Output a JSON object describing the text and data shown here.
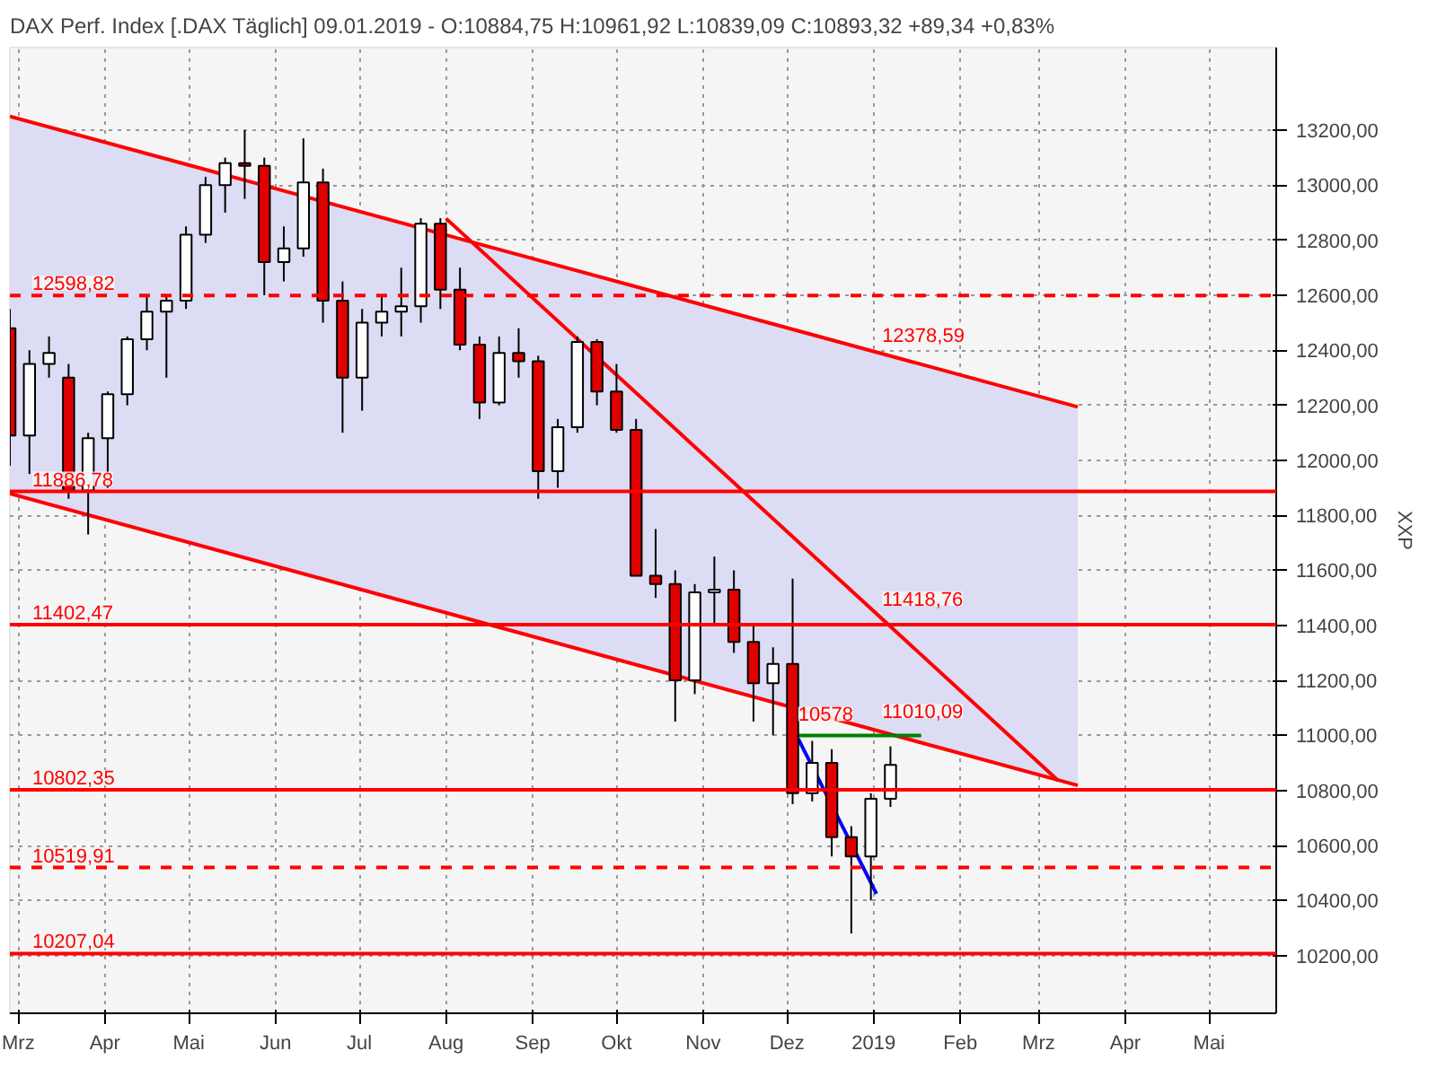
{
  "chart_data": {
    "type": "candlestick",
    "title": "DAX Perf. Index [.DAX  Täglich] 09.01.2019 - O:10884,75 H:10961,92 L:10839,09 C:10893,32 +89,34 +0,83%",
    "ylabel": "XXP",
    "x": [
      "2018-02-26",
      "2018-03-05",
      "2018-03-12",
      "2018-03-19",
      "2018-03-26",
      "2018-04-02",
      "2018-04-09",
      "2018-04-16",
      "2018-04-23",
      "2018-04-30",
      "2018-05-07",
      "2018-05-14",
      "2018-05-21",
      "2018-05-28",
      "2018-06-04",
      "2018-06-11",
      "2018-06-18",
      "2018-06-25",
      "2018-07-02",
      "2018-07-09",
      "2018-07-16",
      "2018-07-23",
      "2018-07-30",
      "2018-08-06",
      "2018-08-13",
      "2018-08-20",
      "2018-08-27",
      "2018-09-03",
      "2018-09-10",
      "2018-09-17",
      "2018-09-24",
      "2018-10-01",
      "2018-10-08",
      "2018-10-15",
      "2018-10-22",
      "2018-10-29",
      "2018-11-05",
      "2018-11-12",
      "2018-11-19",
      "2018-11-26",
      "2018-12-03",
      "2018-12-10",
      "2018-12-17",
      "2018-12-24",
      "2018-12-31",
      "2019-01-07"
    ],
    "ohlc": [
      [
        12480,
        12550,
        11980,
        12090
      ],
      [
        12090,
        12400,
        11950,
        12350
      ],
      [
        12350,
        12450,
        12300,
        12390
      ],
      [
        12300,
        12350,
        11860,
        11890
      ],
      [
        11890,
        12100,
        11730,
        12080
      ],
      [
        12080,
        12250,
        11900,
        12240
      ],
      [
        12240,
        12450,
        12200,
        12440
      ],
      [
        12440,
        12600,
        12400,
        12540
      ],
      [
        12540,
        12600,
        12300,
        12580
      ],
      [
        12580,
        12850,
        12550,
        12820
      ],
      [
        12820,
        13030,
        12790,
        13000
      ],
      [
        13000,
        13100,
        12900,
        13080
      ],
      [
        13080,
        13200,
        12950,
        13070
      ],
      [
        13070,
        13100,
        12600,
        12720
      ],
      [
        12720,
        12850,
        12650,
        12770
      ],
      [
        12770,
        13170,
        12740,
        13010
      ],
      [
        13010,
        13060,
        12500,
        12580
      ],
      [
        12580,
        12650,
        12100,
        12300
      ],
      [
        12300,
        12550,
        12180,
        12500
      ],
      [
        12500,
        12600,
        12450,
        12540
      ],
      [
        12540,
        12700,
        12450,
        12560
      ],
      [
        12560,
        12880,
        12500,
        12860
      ],
      [
        12860,
        12880,
        12550,
        12620
      ],
      [
        12620,
        12700,
        12400,
        12420
      ],
      [
        12420,
        12450,
        12150,
        12210
      ],
      [
        12210,
        12450,
        12200,
        12390
      ],
      [
        12390,
        12480,
        12300,
        12360
      ],
      [
        12360,
        12380,
        11860,
        11960
      ],
      [
        11960,
        12150,
        11900,
        12120
      ],
      [
        12120,
        12450,
        12100,
        12430
      ],
      [
        12430,
        12440,
        12200,
        12250
      ],
      [
        12250,
        12350,
        12100,
        12110
      ],
      [
        12110,
        12150,
        11580,
        11580
      ],
      [
        11580,
        11750,
        11500,
        11550
      ],
      [
        11550,
        11600,
        11050,
        11200
      ],
      [
        11200,
        11550,
        11150,
        11520
      ],
      [
        11520,
        11650,
        11400,
        11530
      ],
      [
        11530,
        11600,
        11300,
        11340
      ],
      [
        11340,
        11400,
        11050,
        11190
      ],
      [
        11190,
        11320,
        11000,
        11260
      ],
      [
        11260,
        11570,
        10750,
        10790
      ],
      [
        10790,
        10980,
        10760,
        10900
      ],
      [
        10900,
        10950,
        10560,
        10630
      ],
      [
        10630,
        10670,
        10280,
        10560
      ],
      [
        10560,
        10790,
        10400,
        10770
      ],
      [
        10770,
        10960,
        10740,
        10893
      ]
    ],
    "series": [
      {
        "type": "line",
        "color": "#ff0000",
        "x": [
          "2018-02-26",
          "2019-03-15"
        ],
        "values": [
          13250,
          12194
        ],
        "lower": [
          11879,
          10818
        ],
        "upper": [
          13250,
          12194
        ]
      },
      {
        "type": "line",
        "color": "#ff0000",
        "x": [
          "2018-02-26",
          "2019-03-15"
        ],
        "values": [
          11879,
          10818
        ]
      },
      {
        "type": "line",
        "color": "#ff0000",
        "x": [
          "2018-08-01",
          "2019-03-08"
        ],
        "values": [
          12879,
          10836
        ]
      },
      {
        "type": "line",
        "color": "#0000ff",
        "x": [
          "2018-12-05",
          "2019-01-02"
        ],
        "values": [
          10988,
          10424
        ]
      },
      {
        "type": "line",
        "color": "#008000",
        "x": [
          "2018-12-03",
          "2019-01-18"
        ],
        "values": [
          11000,
          11000
        ]
      }
    ],
    "ref_lines": [
      {
        "axis": "y",
        "value": 12598.82,
        "label": "12598,82",
        "color": "#ff0000",
        "line_style": "dashed"
      },
      {
        "axis": "y",
        "value": 11886.78,
        "label": "11886,78",
        "color": "#ff0000",
        "line_style": "solid"
      },
      {
        "axis": "y",
        "value": 11402.47,
        "label": "11402,47",
        "color": "#ff0000",
        "line_style": "solid"
      },
      {
        "axis": "y",
        "value": 10802.35,
        "label": "10802,35",
        "color": "#ff0000",
        "line_style": "solid"
      },
      {
        "axis": "y",
        "value": 10519.91,
        "label": "10519,91",
        "color": "#ff0000",
        "line_style": "dashed"
      },
      {
        "axis": "y",
        "value": 10207.04,
        "label": "10207,04",
        "color": "#ff0000",
        "line_style": "solid"
      }
    ],
    "annotations": [
      {
        "text": "12378,59",
        "x": "2019-01-04",
        "y": 12378.59
      },
      {
        "text": "11418,76",
        "x": "2019-01-04",
        "y": 11418.76
      },
      {
        "text": "11010,09",
        "x": "2019-01-04",
        "y": 11010.09
      },
      {
        "text": "10578",
        "x": "2018-12-05",
        "y": 11000
      }
    ],
    "xlim": [
      "2018-02-26",
      "2019-05-25"
    ],
    "xticks": [
      {
        "value": "2018-03-01",
        "label": "Mrz"
      },
      {
        "value": "2018-04-01",
        "label": "Apr"
      },
      {
        "value": "2018-05-01",
        "label": "Mai"
      },
      {
        "value": "2018-06-01",
        "label": "Jun"
      },
      {
        "value": "2018-07-01",
        "label": "Jul"
      },
      {
        "value": "2018-08-01",
        "label": "Aug"
      },
      {
        "value": "2018-09-01",
        "label": "Sep"
      },
      {
        "value": "2018-10-01",
        "label": "Okt"
      },
      {
        "value": "2018-11-01",
        "label": "Nov"
      },
      {
        "value": "2018-12-01",
        "label": "Dez"
      },
      {
        "value": "2019-01-01",
        "label": "2019"
      },
      {
        "value": "2019-02-01",
        "label": "Feb"
      },
      {
        "value": "2019-03-01",
        "label": "Mrz"
      },
      {
        "value": "2019-04-01",
        "label": "Apr"
      },
      {
        "value": "2019-05-01",
        "label": "Mai"
      }
    ],
    "ylim": [
      9990,
      13500
    ],
    "yticks": [
      {
        "value": 10200,
        "label": "10200,00"
      },
      {
        "value": 10400,
        "label": "10400,00"
      },
      {
        "value": 10600,
        "label": "10600,00"
      },
      {
        "value": 10800,
        "label": "10800,00"
      },
      {
        "value": 11000,
        "label": "11000,00"
      },
      {
        "value": 11200,
        "label": "11200,00"
      },
      {
        "value": 11400,
        "label": "11400,00"
      },
      {
        "value": 11600,
        "label": "11600,00"
      },
      {
        "value": 11800,
        "label": "11800,00"
      },
      {
        "value": 12000,
        "label": "12000,00"
      },
      {
        "value": 12200,
        "label": "12200,00"
      },
      {
        "value": 12400,
        "label": "12400,00"
      },
      {
        "value": 12600,
        "label": "12600,00"
      },
      {
        "value": 12800,
        "label": "12800,00"
      },
      {
        "value": 13000,
        "label": "13000,00"
      },
      {
        "value": 13200,
        "label": "13200,00"
      }
    ],
    "grid": true
  }
}
